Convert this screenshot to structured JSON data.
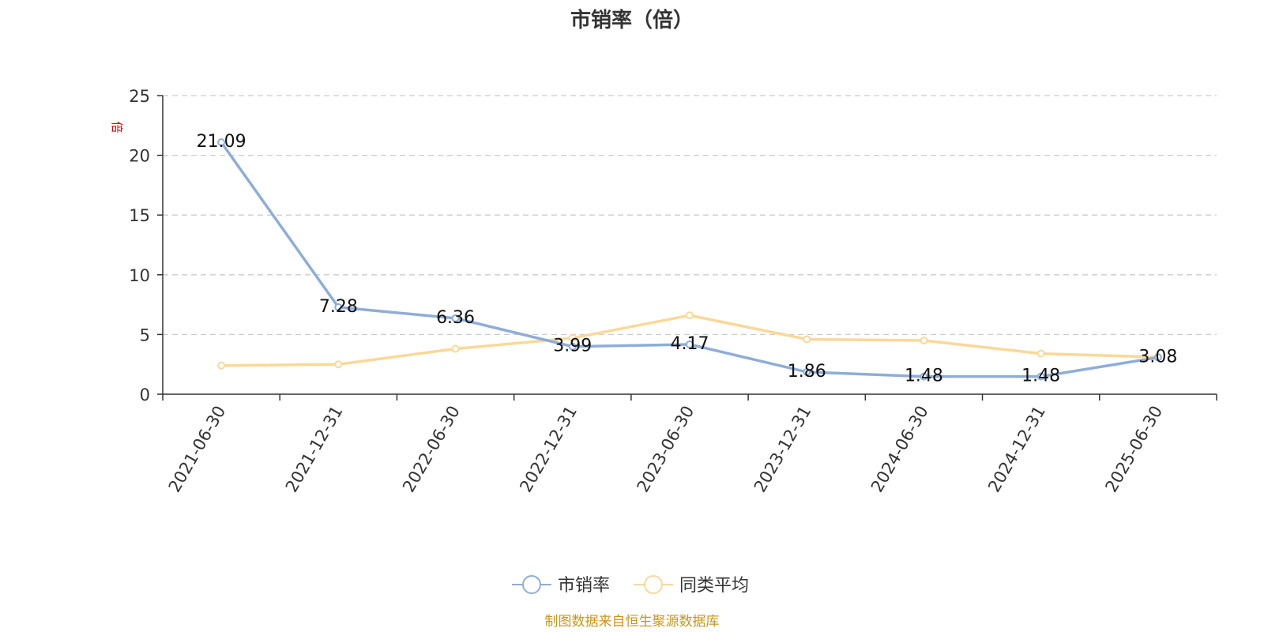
{
  "chart_data": {
    "type": "line",
    "title": "市销率（倍）",
    "ylabel": "倍",
    "categories": [
      "2021-06-30",
      "2021-12-31",
      "2022-06-30",
      "2022-12-31",
      "2023-06-30",
      "2023-12-31",
      "2024-06-30",
      "2024-12-31",
      "2025-06-30"
    ],
    "ylim": [
      0,
      25
    ],
    "yticks": [
      "0",
      "5",
      "10",
      "15",
      "20",
      "25"
    ],
    "grid": true,
    "legend_position": "bottom-center",
    "series": [
      {
        "name": "市销率",
        "color": "#8eadd8",
        "values": [
          21.09,
          7.28,
          6.36,
          3.99,
          4.17,
          1.86,
          1.48,
          1.48,
          3.08
        ],
        "labels": [
          "21.09",
          "7.28",
          "6.36",
          "3.99",
          "4.17",
          "1.86",
          "1.48",
          "1.48",
          "3.08"
        ]
      },
      {
        "name": "同类平均",
        "color": "#fad898",
        "values": [
          2.4,
          2.5,
          3.8,
          4.7,
          6.6,
          4.6,
          4.5,
          3.4,
          3.1
        ]
      }
    ]
  },
  "source_note": "制图数据来自恒生聚源数据库"
}
